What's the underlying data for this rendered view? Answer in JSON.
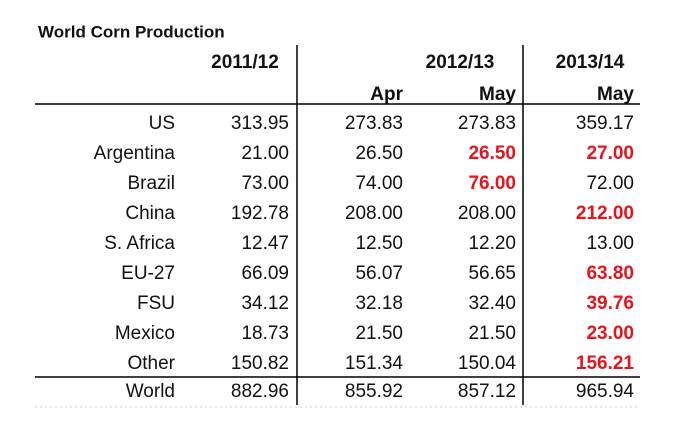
{
  "table": {
    "title": "World Corn Production",
    "highlight_color": "#e8141b",
    "years": [
      "2011/12",
      "2012/13",
      "2013/14"
    ],
    "months": [
      "Apr",
      "May",
      "May"
    ],
    "rows": [
      {
        "label": "US",
        "cells": [
          "313.95",
          "273.83",
          "273.83",
          "359.17"
        ],
        "highlight": [
          false,
          false,
          false,
          false
        ]
      },
      {
        "label": "Argentina",
        "cells": [
          "21.00",
          "26.50",
          "26.50",
          "27.00"
        ],
        "highlight": [
          false,
          false,
          true,
          true
        ]
      },
      {
        "label": "Brazil",
        "cells": [
          "73.00",
          "74.00",
          "76.00",
          "72.00"
        ],
        "highlight": [
          false,
          false,
          true,
          false
        ]
      },
      {
        "label": "China",
        "cells": [
          "192.78",
          "208.00",
          "208.00",
          "212.00"
        ],
        "highlight": [
          false,
          false,
          false,
          true
        ]
      },
      {
        "label": "S. Africa",
        "cells": [
          "12.47",
          "12.50",
          "12.20",
          "13.00"
        ],
        "highlight": [
          false,
          false,
          false,
          false
        ]
      },
      {
        "label": "EU-27",
        "cells": [
          "66.09",
          "56.07",
          "56.65",
          "63.80"
        ],
        "highlight": [
          false,
          false,
          false,
          true
        ]
      },
      {
        "label": "FSU",
        "cells": [
          "34.12",
          "32.18",
          "32.40",
          "39.76"
        ],
        "highlight": [
          false,
          false,
          false,
          true
        ]
      },
      {
        "label": "Mexico",
        "cells": [
          "18.73",
          "21.50",
          "21.50",
          "23.00"
        ],
        "highlight": [
          false,
          false,
          false,
          true
        ]
      },
      {
        "label": "Other",
        "cells": [
          "150.82",
          "151.34",
          "150.04",
          "156.21"
        ],
        "highlight": [
          false,
          false,
          false,
          true
        ]
      }
    ],
    "total": {
      "label": "World",
      "cells": [
        "882.96",
        "855.92",
        "857.12",
        "965.94"
      ]
    }
  }
}
